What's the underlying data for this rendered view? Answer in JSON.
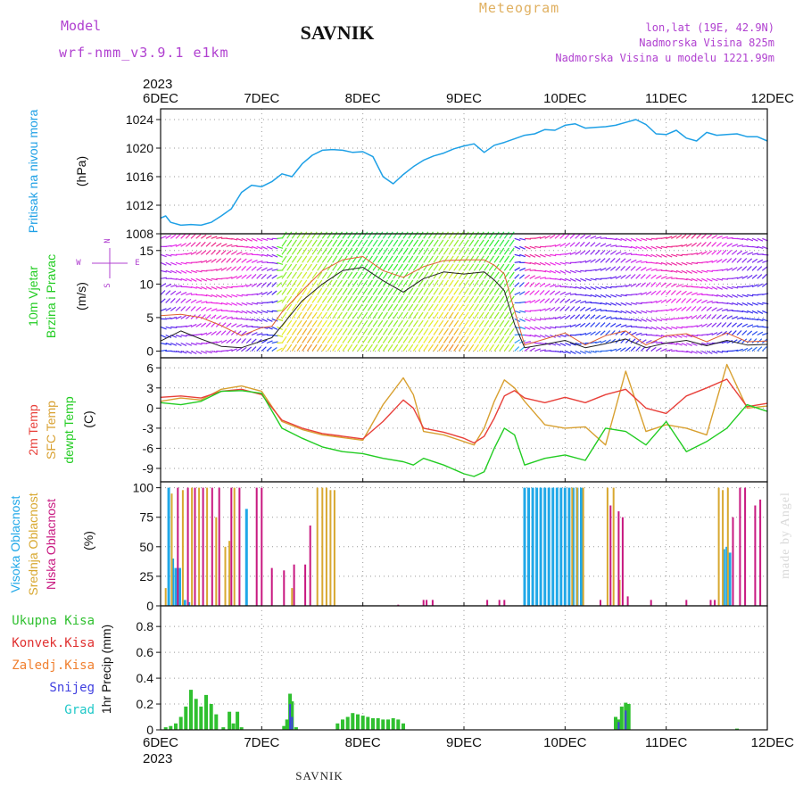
{
  "header": {
    "model_label": "Model",
    "model_name": "wrf-nmm_v3.9.1 e1km",
    "station": "SAVNIK",
    "product": "Meteogram",
    "coords": "lon,lat (19E, 42.9N)",
    "elevation": "Nadmorska Visina 825m",
    "model_elevation": "Nadmorska Visina u modelu 1221.99m"
  },
  "footer": {
    "station": "SAVNIK",
    "credit": "made by Angel"
  },
  "colors": {
    "pressure": "#1ea0e6",
    "temp2m": "#e8403a",
    "sfc": "#d8a030",
    "dew": "#22cc22",
    "high_cloud": "#20a8e8",
    "mid_cloud": "#d8a830",
    "low_cloud": "#c81880",
    "precip_total": "#30c030",
    "precip_conv": "#e03030",
    "precip_frozen": "#f08030",
    "snow": "#4040e0",
    "grad": "#20c8c8",
    "purple": "#b040d0"
  },
  "chart_data": [
    {
      "type": "line",
      "title": "",
      "xlabel": "",
      "year_label": "2023",
      "x_ticks": [
        "6DEC",
        "7DEC",
        "8DEC",
        "9DEC",
        "10DEC",
        "11DEC",
        "12DEC"
      ],
      "ylabel": "Pritisak na nivou mora",
      "unit": "(hPa)",
      "ylim": [
        1008,
        1025.5
      ],
      "y_ticks": [
        1008,
        1012,
        1016,
        1020,
        1024
      ],
      "grid": true,
      "series": [
        {
          "x": [
            0,
            0.05,
            0.1,
            0.2,
            0.3,
            0.4,
            0.5,
            0.6,
            0.7,
            0.8,
            0.9,
            1.0,
            1.1,
            1.2,
            1.3,
            1.4,
            1.5,
            1.6,
            1.7,
            1.8,
            1.9,
            2.0,
            2.1,
            2.2,
            2.3,
            2.4,
            2.5,
            2.6,
            2.7,
            2.8,
            2.9,
            3.0,
            3.1,
            3.2,
            3.3,
            3.4,
            3.5,
            3.6,
            3.7,
            3.8,
            3.9,
            4.0,
            4.1,
            4.2,
            4.3,
            4.4,
            4.5,
            4.6,
            4.7,
            4.8,
            4.9,
            5.0,
            5.1,
            5.2,
            5.3,
            5.4,
            5.5,
            5.6,
            5.7,
            5.8,
            5.9,
            6.0
          ],
          "values": [
            1010.2,
            1010.5,
            1009.6,
            1009.2,
            1009.3,
            1009.2,
            1009.6,
            1010.5,
            1011.5,
            1013.8,
            1014.8,
            1014.6,
            1015.3,
            1016.4,
            1016.0,
            1017.8,
            1019.0,
            1019.7,
            1019.8,
            1019.7,
            1019.4,
            1019.5,
            1018.8,
            1016.0,
            1015.0,
            1016.3,
            1017.4,
            1018.3,
            1018.9,
            1019.3,
            1019.9,
            1020.3,
            1020.6,
            1019.4,
            1020.4,
            1020.8,
            1021.3,
            1021.8,
            1022.0,
            1022.6,
            1022.5,
            1023.2,
            1023.4,
            1022.8,
            1022.9,
            1023.0,
            1023.2,
            1023.6,
            1024.0,
            1023.3,
            1022.0,
            1021.9,
            1022.5,
            1021.4,
            1021.0,
            1022.2,
            1021.8,
            1021.9,
            1022.0,
            1021.6,
            1021.6,
            1021.0
          ]
        }
      ]
    },
    {
      "type": "line",
      "title": "",
      "ylabel_lines": [
        "10m Vjetar",
        "Brzina i Pravac"
      ],
      "unit": "(m/s)",
      "compass_labels": [
        "N",
        "E",
        "S",
        "W"
      ],
      "ylim": [
        -1,
        17.5
      ],
      "y_ticks": [
        0,
        5,
        10,
        15
      ],
      "grid": true,
      "series": [
        {
          "name": "gust",
          "x": [
            0,
            0.2,
            0.4,
            0.6,
            0.8,
            1.0,
            1.1,
            1.2,
            1.4,
            1.6,
            1.8,
            2.0,
            2.2,
            2.4,
            2.6,
            2.8,
            3.0,
            3.2,
            3.3,
            3.4,
            3.5,
            3.6,
            3.8,
            4.0,
            4.2,
            4.4,
            4.6,
            4.8,
            5.0,
            5.2,
            5.4,
            5.6,
            5.8,
            6.0
          ],
          "values": [
            5.3,
            5.5,
            5.0,
            3.8,
            2.3,
            3.5,
            3.7,
            5.8,
            9.0,
            12.0,
            13.6,
            14.1,
            12.0,
            11.0,
            12.6,
            13.5,
            13.6,
            13.6,
            12.8,
            11.5,
            6.0,
            0.9,
            1.8,
            2.7,
            0.9,
            2.3,
            3.0,
            0.9,
            2.3,
            2.6,
            1.4,
            2.7,
            1.4,
            1.5
          ]
        },
        {
          "name": "mean",
          "x": [
            0,
            0.2,
            0.4,
            0.6,
            0.8,
            1.0,
            1.1,
            1.2,
            1.4,
            1.6,
            1.8,
            2.0,
            2.2,
            2.4,
            2.6,
            2.8,
            3.0,
            3.2,
            3.3,
            3.4,
            3.5,
            3.6,
            3.8,
            4.0,
            4.2,
            4.4,
            4.6,
            4.8,
            5.0,
            5.2,
            5.4,
            5.6,
            5.8,
            6.0
          ],
          "values": [
            1.5,
            3.0,
            1.8,
            0.7,
            0.5,
            1.5,
            2.0,
            3.8,
            7.5,
            10.0,
            12.0,
            12.5,
            10.5,
            8.8,
            10.8,
            11.8,
            11.5,
            11.8,
            10.6,
            9.0,
            4.0,
            0.5,
            1.0,
            1.6,
            0.5,
            1.1,
            1.8,
            0.5,
            1.2,
            1.6,
            0.8,
            1.6,
            0.9,
            1.0
          ]
        }
      ]
    },
    {
      "type": "line",
      "title": "",
      "ylabel_lines": [
        "2m Temp",
        "SFC Temp",
        "dewpt Temp"
      ],
      "unit": "(C)",
      "ylim": [
        -11,
        7.5
      ],
      "y_ticks": [
        -9,
        -6,
        -3,
        0,
        3,
        6
      ],
      "grid": true,
      "series": [
        {
          "name": "2m Temp",
          "x": [
            0,
            0.2,
            0.4,
            0.6,
            0.8,
            1.0,
            1.2,
            1.4,
            1.6,
            1.8,
            2.0,
            2.2,
            2.4,
            2.5,
            2.6,
            2.8,
            3.0,
            3.1,
            3.2,
            3.3,
            3.4,
            3.5,
            3.6,
            3.8,
            4.0,
            4.2,
            4.4,
            4.6,
            4.8,
            5.0,
            5.2,
            5.4,
            5.6,
            5.8,
            6.0
          ],
          "values": [
            1.6,
            1.8,
            1.5,
            2.5,
            2.8,
            2.0,
            -1.8,
            -3.0,
            -3.8,
            -4.2,
            -4.6,
            -2.0,
            1.2,
            0.0,
            -3.0,
            -3.6,
            -4.5,
            -5.2,
            -4.2,
            -1.5,
            1.8,
            2.6,
            1.5,
            0.8,
            1.6,
            0.8,
            2.0,
            2.8,
            0.0,
            -0.8,
            1.8,
            3.0,
            4.3,
            0.2,
            0.7
          ]
        },
        {
          "name": "SFC Temp",
          "x": [
            0,
            0.2,
            0.4,
            0.6,
            0.8,
            1.0,
            1.2,
            1.4,
            1.6,
            1.8,
            2.0,
            2.2,
            2.4,
            2.5,
            2.6,
            2.8,
            3.0,
            3.1,
            3.2,
            3.3,
            3.4,
            3.5,
            3.6,
            3.8,
            4.0,
            4.2,
            4.4,
            4.6,
            4.8,
            5.0,
            5.2,
            5.4,
            5.6,
            5.8,
            6.0
          ],
          "values": [
            1.0,
            1.5,
            1.2,
            2.8,
            3.3,
            2.5,
            -2.0,
            -3.2,
            -4.0,
            -4.4,
            -4.8,
            0.5,
            4.5,
            2.0,
            -3.5,
            -4.0,
            -5.0,
            -5.5,
            -3.0,
            1.0,
            4.2,
            3.0,
            1.0,
            -2.5,
            -3.0,
            -2.8,
            -5.5,
            5.5,
            -3.5,
            -2.5,
            -3.0,
            -4.0,
            6.5,
            0.0,
            0.3
          ]
        },
        {
          "name": "dewpt Temp",
          "x": [
            0,
            0.2,
            0.4,
            0.6,
            0.8,
            1.0,
            1.2,
            1.4,
            1.6,
            1.8,
            2.0,
            2.2,
            2.4,
            2.5,
            2.6,
            2.8,
            3.0,
            3.1,
            3.2,
            3.3,
            3.4,
            3.5,
            3.6,
            3.8,
            4.0,
            4.2,
            4.4,
            4.6,
            4.8,
            5.0,
            5.2,
            5.4,
            5.6,
            5.8,
            6.0
          ],
          "values": [
            0.8,
            0.5,
            1.0,
            2.5,
            2.6,
            2.2,
            -3.0,
            -4.5,
            -5.8,
            -6.5,
            -6.8,
            -7.5,
            -8.0,
            -8.5,
            -7.5,
            -8.5,
            -9.8,
            -10.2,
            -9.5,
            -6.0,
            -3.0,
            -4.0,
            -8.5,
            -7.5,
            -7.0,
            -7.8,
            -3.0,
            -3.5,
            -5.5,
            -2.0,
            -6.5,
            -5.0,
            -3.0,
            0.5,
            -0.5
          ]
        }
      ]
    },
    {
      "type": "bar",
      "title": "",
      "ylabel_lines": [
        "Visoka Oblacnost",
        "Srednja Oblacnost",
        "Niska Oblacnost"
      ],
      "unit": "(%)",
      "ylim": [
        0,
        105
      ],
      "y_ticks": [
        0,
        25,
        50,
        75,
        100
      ],
      "grid": true,
      "series": [
        {
          "name": "Visoka Oblacnost",
          "x": [
            0.08,
            0.12,
            0.15,
            0.19,
            0.24,
            0.28,
            0.85,
            3.6,
            3.64,
            3.68,
            3.72,
            3.76,
            3.8,
            3.84,
            3.88,
            3.92,
            3.96,
            4.0,
            4.04,
            4.08,
            4.12,
            4.16,
            5.57,
            5.6,
            5.63
          ],
          "values": [
            100,
            40,
            32,
            32,
            5,
            3,
            82,
            100,
            100,
            100,
            100,
            100,
            100,
            100,
            100,
            100,
            100,
            100,
            100,
            100,
            100,
            100,
            48,
            50,
            45
          ]
        },
        {
          "name": "Srednja Oblacnost",
          "x": [
            0.05,
            0.11,
            0.22,
            0.31,
            0.38,
            0.46,
            0.55,
            0.64,
            0.68,
            0.73,
            1.3,
            1.55,
            1.6,
            1.64,
            1.68,
            1.72,
            4.07,
            4.12,
            4.18,
            4.42,
            4.48,
            4.54,
            5.52,
            5.56,
            5.61
          ],
          "values": [
            15,
            95,
            98,
            100,
            100,
            100,
            75,
            50,
            55,
            100,
            15,
            100,
            100,
            100,
            98,
            98,
            100,
            100,
            100,
            100,
            100,
            22,
            100,
            98,
            100
          ]
        },
        {
          "name": "Niska Oblacnost",
          "x": [
            0.17,
            0.27,
            0.34,
            0.42,
            0.51,
            0.58,
            0.7,
            0.78,
            0.95,
            1.0,
            1.1,
            1.22,
            1.32,
            1.43,
            1.48,
            2.35,
            2.6,
            2.63,
            2.69,
            3.23,
            3.35,
            3.4,
            4.35,
            4.45,
            4.53,
            4.57,
            4.62,
            4.85,
            5.2,
            5.44,
            5.48,
            5.66,
            5.73,
            5.78,
            5.88,
            5.93
          ],
          "values": [
            100,
            100,
            100,
            100,
            100,
            100,
            100,
            100,
            100,
            100,
            32,
            30,
            35,
            35,
            68,
            1,
            5,
            5,
            5,
            5,
            5,
            5,
            5,
            85,
            80,
            75,
            8,
            5,
            5,
            5,
            5,
            75,
            100,
            100,
            85,
            90
          ]
        }
      ]
    },
    {
      "type": "bar",
      "title": "",
      "ylabel_lines": [
        "Ukupna Kisa",
        "Konvek.Kisa",
        "Zaledj.Kisa",
        "Snijeg",
        "Grad"
      ],
      "unit": "1hr Precip (mm)",
      "ylim": [
        0,
        0.96
      ],
      "y_ticks": [
        0,
        0.2,
        0.4,
        0.6,
        0.8
      ],
      "y_tick_labels": [
        "0",
        "0.2",
        "0.4",
        "0.6",
        "0.8"
      ],
      "grid": true,
      "series": [
        {
          "name": "Ukupna Kisa",
          "x": [
            0.05,
            0.1,
            0.15,
            0.2,
            0.25,
            0.3,
            0.35,
            0.4,
            0.45,
            0.5,
            0.55,
            0.62,
            0.68,
            0.72,
            0.76,
            0.8,
            1.22,
            1.25,
            1.28,
            1.3,
            1.34,
            1.75,
            1.8,
            1.85,
            1.9,
            1.95,
            2.0,
            2.05,
            2.1,
            2.15,
            2.2,
            2.25,
            2.3,
            2.35,
            2.4,
            4.5,
            4.53,
            4.56,
            4.6,
            4.63,
            5.7
          ],
          "values": [
            0.02,
            0.03,
            0.05,
            0.1,
            0.18,
            0.31,
            0.24,
            0.18,
            0.27,
            0.2,
            0.12,
            0.02,
            0.14,
            0.05,
            0.14,
            0.02,
            0.03,
            0.08,
            0.28,
            0.22,
            0.02,
            0.05,
            0.08,
            0.1,
            0.13,
            0.12,
            0.11,
            0.1,
            0.09,
            0.09,
            0.08,
            0.08,
            0.09,
            0.08,
            0.05,
            0.1,
            0.08,
            0.18,
            0.21,
            0.2,
            0.01
          ]
        },
        {
          "name": "Snijeg",
          "x": [
            1.28,
            1.3,
            4.53,
            4.6
          ],
          "values": [
            0.2,
            0.1,
            0.06,
            0.15
          ]
        }
      ]
    }
  ]
}
